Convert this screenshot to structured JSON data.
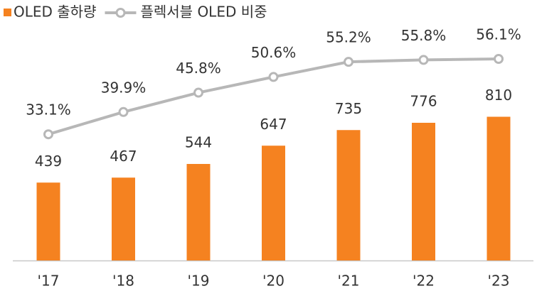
{
  "chart_data": {
    "type": "bar",
    "categories": [
      "'17",
      "'18",
      "'19",
      "'20",
      "'21",
      "'22",
      "'23"
    ],
    "series": [
      {
        "name": "OLED 출하량",
        "type": "bar",
        "color": "#f58220",
        "values": [
          439,
          467,
          544,
          647,
          735,
          776,
          810
        ]
      },
      {
        "name": "플렉서블 OLED 비중",
        "type": "line",
        "axis": "y2",
        "color": "#b7b7b7",
        "values": [
          33.1,
          39.9,
          45.8,
          50.6,
          55.2,
          55.8,
          56.1
        ],
        "value_labels": [
          "33.1%",
          "39.9%",
          "45.8%",
          "50.6%",
          "55.2%",
          "55.8%",
          "56.1%"
        ]
      }
    ],
    "ylim": [
      0,
      1000
    ],
    "y2lim": [
      0,
      60
    ]
  }
}
